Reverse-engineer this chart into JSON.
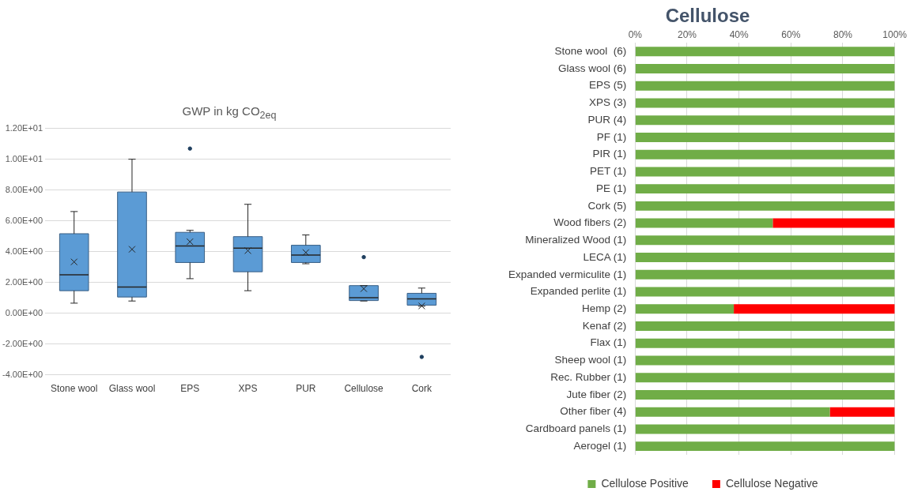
{
  "chart_data": [
    {
      "type": "box",
      "title": "GWP in kg CO$_{2eq}$",
      "categories": [
        "Stone wool",
        "Glass wool",
        "EPS",
        "XPS",
        "PUR",
        "Cellulose",
        "Cork"
      ],
      "color": "#5b9bd5",
      "boxes": [
        {
          "low": 0.65,
          "q1": 1.46,
          "median": 2.49,
          "q3": 5.16,
          "high": 6.6,
          "mean": 3.33
        },
        {
          "low": 0.79,
          "q1": 1.05,
          "median": 1.7,
          "q3": 7.87,
          "high": 10.0,
          "mean": 4.15
        },
        {
          "low": 2.24,
          "q1": 3.29,
          "median": 4.36,
          "q3": 5.25,
          "high": 5.38,
          "mean": 4.64,
          "outliers": [
            10.69
          ]
        },
        {
          "low": 1.46,
          "q1": 2.69,
          "median": 4.22,
          "q3": 4.97,
          "high": 7.07,
          "mean": 4.06
        },
        {
          "low": 3.21,
          "q1": 3.29,
          "median": 3.78,
          "q3": 4.41,
          "high": 5.08,
          "mean": 3.94
        },
        {
          "low": 0.79,
          "q1": 0.82,
          "median": 1.01,
          "q3": 1.79,
          "high": 1.79,
          "mean": 1.59,
          "outliers": [
            3.64
          ]
        },
        {
          "low": 0.45,
          "q1": 0.52,
          "median": 0.93,
          "q3": 1.29,
          "high": 1.63,
          "mean": 0.47,
          "outliers": [
            -2.84
          ]
        }
      ],
      "ylim": [
        -4,
        12
      ],
      "yticks": [
        {
          "value": -4,
          "label": "-4.00E+00"
        },
        {
          "value": -2,
          "label": "-2.00E+00"
        },
        {
          "value": 0,
          "label": "0.00E+00"
        },
        {
          "value": 2,
          "label": "2.00E+00"
        },
        {
          "value": 4,
          "label": "4.00E+00"
        },
        {
          "value": 6,
          "label": "6.00E+00"
        },
        {
          "value": 8,
          "label": "8.00E+00"
        },
        {
          "value": 10,
          "label": "1.00E+01"
        },
        {
          "value": 12,
          "label": "1.20E+01"
        }
      ],
      "grid": "y",
      "legend": false
    },
    {
      "type": "bar",
      "title": "Cellulose",
      "orientation": "horizontal",
      "stacked": true,
      "categories": [
        "Stone wool  (6)",
        "Glass wool (6)",
        "EPS (5)",
        "XPS (3)",
        "PUR (4)",
        "PF (1)",
        "PIR (1)",
        "PET (1)",
        "PE (1)",
        "Cork (5)",
        "Wood fibers (2)",
        "Mineralized Wood (1)",
        "LECA (1)",
        "Expanded vermiculite (1)",
        "Expanded perlite (1)",
        "Hemp (2)",
        "Kenaf (2)",
        "Flax (1)",
        "Sheep wool (1)",
        "Rec. Rubber (1)",
        "Jute fiber (2)",
        "Other fiber (4)",
        "Cardboard panels (1)",
        "Aerogel (1)"
      ],
      "series": [
        {
          "name": "Cellulose Positive",
          "color": "#70ad47",
          "values": [
            100,
            100,
            100,
            100,
            100,
            100,
            100,
            100,
            100,
            100,
            53,
            100,
            100,
            100,
            100,
            38,
            100,
            100,
            100,
            100,
            100,
            75,
            100,
            100
          ]
        },
        {
          "name": "Cellulose Negative",
          "color": "#ff0000",
          "values": [
            0,
            0,
            0,
            0,
            0,
            0,
            0,
            0,
            0,
            0,
            47,
            0,
            0,
            0,
            0,
            62,
            0,
            0,
            0,
            0,
            0,
            25,
            0,
            0
          ]
        }
      ],
      "xlim": [
        0,
        100
      ],
      "xticks": [
        {
          "value": 0,
          "label": "0%"
        },
        {
          "value": 20,
          "label": "20%"
        },
        {
          "value": 40,
          "label": "40%"
        },
        {
          "value": 60,
          "label": "60%"
        },
        {
          "value": 80,
          "label": "80%"
        },
        {
          "value": 100,
          "label": "100%"
        }
      ],
      "grid": "x",
      "legend": "bottom"
    }
  ]
}
